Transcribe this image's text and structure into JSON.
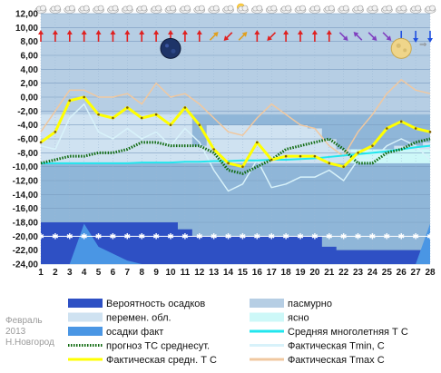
{
  "chart_data": {
    "type": "line",
    "x": [
      1,
      2,
      3,
      4,
      5,
      6,
      7,
      8,
      9,
      10,
      11,
      12,
      13,
      14,
      15,
      16,
      17,
      18,
      19,
      20,
      21,
      22,
      23,
      24,
      25,
      26,
      27,
      28
    ],
    "ylim": [
      -24,
      12
    ],
    "yticks": [
      "12,00",
      "10,00",
      "8,00",
      "6,00",
      "4,00",
      "2,00",
      "0,00",
      "-2,00",
      "-4,00",
      "-6,00",
      "-8,00",
      "-10,00",
      "-12,00",
      "-14,00",
      "-16,00",
      "-18,00",
      "-20,00",
      "-22,00",
      "-24,00"
    ],
    "ytick_values": [
      12,
      10,
      8,
      6,
      4,
      2,
      0,
      -2,
      -4,
      -6,
      -8,
      -10,
      -12,
      -14,
      -16,
      -18,
      -20,
      -22,
      -24
    ],
    "xticks": [
      "1",
      "2",
      "3",
      "4",
      "5",
      "6",
      "7",
      "8",
      "9",
      "10",
      "11",
      "12",
      "13",
      "14",
      "15",
      "16",
      "17",
      "18",
      "19",
      "20",
      "21",
      "22",
      "23",
      "24",
      "25",
      "26",
      "27",
      "28"
    ],
    "colors": {
      "plot_bg": "#8fb6d8",
      "overcast": "#b6cee4",
      "variable": "#cfe2f1",
      "clear": "#cdf8f8",
      "precip_prob": "#2e50c4",
      "precip_fact": "#4a96e4",
      "avg_longterm": "#22e6ee",
      "forecast": "#0e6a0e",
      "tmin": "#d8f2fa",
      "tmax": "#f0c8a0",
      "tmean": "#ffff00"
    },
    "series": [
      {
        "name": "Фактическая средн. Т С",
        "values": [
          -6.5,
          -5,
          -0.5,
          0,
          -2.5,
          -3,
          -1.5,
          -3,
          -2.5,
          -4,
          -1.5,
          -4,
          -7.5,
          -9.5,
          -10,
          -6.5,
          -9,
          -8.5,
          -8.5,
          -8.5,
          -9.5,
          -10,
          -8,
          -7,
          -4.5,
          -3.5,
          -4.5,
          -5
        ]
      },
      {
        "name": "Фактическая Tmin, С",
        "values": [
          -7,
          -7.5,
          -3,
          -1,
          -5,
          -6,
          -4.5,
          -6,
          -5,
          -7,
          -4.5,
          -6.5,
          -10.5,
          -13.5,
          -12.5,
          -9,
          -13,
          -12.5,
          -11.5,
          -11.5,
          -10.5,
          -12,
          -9,
          -9,
          -7,
          -6,
          -7,
          -9
        ]
      },
      {
        "name": "Фактическая Tmax C",
        "values": [
          -5,
          -2,
          1,
          1,
          0,
          0,
          0.5,
          -1,
          2,
          0,
          0.5,
          -1,
          -3,
          -5,
          -5.5,
          -3,
          -1,
          -2.5,
          -4,
          -4.5,
          -7,
          -8.5,
          -5,
          -2.5,
          0.5,
          2.5,
          1,
          0.5
        ]
      },
      {
        "name": "прогноз ТС среднесут.",
        "values": [
          -9.5,
          -9,
          -8.5,
          -8.5,
          -8,
          -8,
          -7.5,
          -6.5,
          -6.5,
          -7,
          -7,
          -7,
          -8,
          -10.5,
          -11,
          -10,
          -9,
          -7.5,
          -7,
          -6.5,
          -6,
          -7.5,
          -9.5,
          -9.5,
          -8,
          -7.5,
          -6.5,
          -6
        ]
      },
      {
        "name": "Средняя многолетняя Т С",
        "values": [
          -9.5,
          -9.5,
          -9.5,
          -9.5,
          -9.5,
          -9.5,
          -9.5,
          -9.4,
          -9.4,
          -9.4,
          -9.3,
          -9.3,
          -9.2,
          -9.2,
          -9.1,
          -9.1,
          -9,
          -9,
          -8.9,
          -8.8,
          -8.6,
          -8.4,
          -8.2,
          -8,
          -7.8,
          -7.5,
          -7.2,
          -7
        ]
      },
      {
        "name": "осадки факт",
        "values": [
          -24,
          -24,
          -24,
          -18.2,
          -21.5,
          -22.5,
          -23.5,
          -24,
          -24,
          -24,
          -24,
          -24,
          -24,
          -24,
          -24,
          -24,
          -24,
          -24,
          -24,
          -24,
          -24,
          -24,
          -24,
          -24,
          -24,
          -24,
          -24,
          -18.2
        ]
      },
      {
        "name": "Вероятность осадков",
        "values": [
          -18,
          -18,
          -18,
          -18,
          -18,
          -18,
          -18,
          -18,
          -18,
          -18,
          -19,
          -20,
          -20,
          -20,
          -20,
          -20,
          -20,
          -20,
          -20,
          -20,
          -21.5,
          -22,
          -22,
          -22,
          -22,
          -22,
          -22,
          -22
        ]
      }
    ],
    "sky_band_tops": [
      -2.5,
      -2.5,
      -2.5,
      -2.5,
      -2.5,
      -2.5,
      -2.5,
      -2.5,
      -2.5,
      -2.5,
      -2.5,
      -7,
      -4,
      -4,
      -4,
      -4,
      -4,
      -4,
      -4,
      -4.5,
      -6,
      -7.5,
      -8,
      -8,
      -8,
      -7,
      -7,
      -6.5
    ],
    "legend": [
      {
        "swatch": "bar",
        "color": "#2e50c4",
        "label": "Вероятность осадков"
      },
      {
        "swatch": "bar",
        "color": "#b6cee4",
        "label": "пасмурно"
      },
      {
        "swatch": "bar",
        "color": "#cfe2f1",
        "label": "перемен. обл."
      },
      {
        "swatch": "bar",
        "color": "#cdf8f8",
        "label": "ясно"
      },
      {
        "swatch": "bar",
        "color": "#4a96e4",
        "label": "осадки факт"
      },
      {
        "swatch": "line",
        "color": "#22e6ee",
        "label": "Средняя многолетняя Т С"
      },
      {
        "swatch": "dots",
        "color": "#0e6a0e",
        "label": "прогноз ТС среднесут."
      },
      {
        "swatch": "line",
        "color": "#d8f2fa",
        "label": "Фактическая Tmin, С"
      },
      {
        "swatch": "line",
        "color": "#ffff00",
        "label": "Фактическая средн. Т С"
      },
      {
        "swatch": "line",
        "color": "#f0c8a0",
        "label": "Фактическая Tmax C"
      }
    ],
    "weather_icons": [
      "cloud",
      "cloud",
      "cloud",
      "cloud",
      "cloud",
      "cloud",
      "cloud",
      "cloud",
      "cloud",
      "cloud",
      "cloud",
      "cloud",
      "cloud",
      "cloud",
      "sun-cloud",
      "cloud",
      "cloud",
      "cloud",
      "cloud",
      "cloud",
      "cloud",
      "cloud",
      "cloud",
      "cloud",
      "cloud",
      "cloud",
      "cloud",
      "cloud"
    ],
    "wind_arrows": [
      {
        "dir": "north",
        "color": "#e02020"
      },
      {
        "dir": "north",
        "color": "#e02020"
      },
      {
        "dir": "north",
        "color": "#e02020"
      },
      {
        "dir": "north",
        "color": "#e02020"
      },
      {
        "dir": "north",
        "color": "#e02020"
      },
      {
        "dir": "north",
        "color": "#e02020"
      },
      {
        "dir": "north",
        "color": "#e02020"
      },
      {
        "dir": "north",
        "color": "#e02020"
      },
      {
        "dir": "north",
        "color": "#e02020"
      },
      {
        "dir": "north",
        "color": "#e02020"
      },
      {
        "dir": "north",
        "color": "#e02020"
      },
      {
        "dir": "north",
        "color": "#e02020"
      },
      {
        "dir": "north-east",
        "color": "#e0a020"
      },
      {
        "dir": "south-west",
        "color": "#e02020"
      },
      {
        "dir": "north-east",
        "color": "#e0a020"
      },
      {
        "dir": "north",
        "color": "#e02020"
      },
      {
        "dir": "south-west",
        "color": "#e02020"
      },
      {
        "dir": "north",
        "color": "#e02020"
      },
      {
        "dir": "north",
        "color": "#e02020"
      },
      {
        "dir": "north",
        "color": "#e02020"
      },
      {
        "dir": "north",
        "color": "#e02020"
      },
      {
        "dir": "south-east",
        "color": "#8040c0"
      },
      {
        "dir": "north-west",
        "color": "#8040c0"
      },
      {
        "dir": "south-east",
        "color": "#8040c0"
      },
      {
        "dir": "south-east",
        "color": "#8040c0"
      },
      {
        "dir": "south",
        "color": "#2050e0"
      },
      {
        "dir": "south",
        "color": "#2050e0"
      },
      {
        "dir": "south",
        "color": "#2050e0"
      }
    ],
    "moon_phases": [
      {
        "phase": "new-moon",
        "day": 10
      },
      {
        "phase": "full-moon",
        "day": 26
      }
    ],
    "grid": true,
    "legend_position": "bottom"
  },
  "watermark": {
    "month": "Февраль",
    "year": "2013",
    "city": "Н.Новгород"
  }
}
